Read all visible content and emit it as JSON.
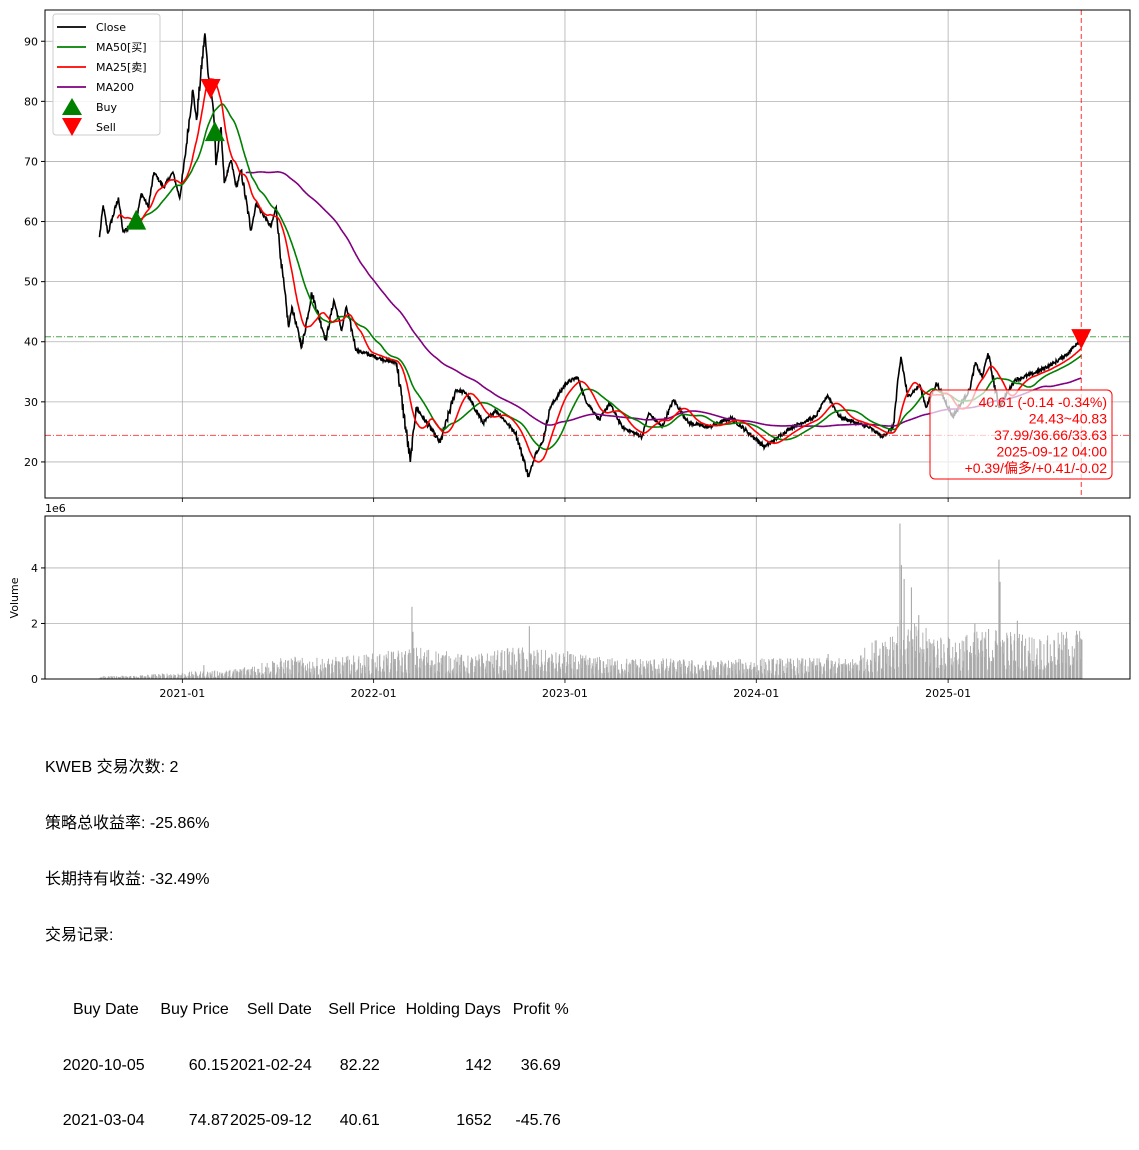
{
  "chart_data": [
    {
      "type": "line",
      "panel": "price",
      "xlim": [
        "2020-04-14",
        "2025-12-14"
      ],
      "ylim": [
        14,
        95.2
      ],
      "yticks": [
        20,
        30,
        40,
        50,
        60,
        70,
        80,
        90
      ],
      "xticks": [
        "2021-01",
        "2022-01",
        "2023-01",
        "2024-01",
        "2025-01"
      ],
      "grid": true,
      "legend_placement": "upper-left",
      "legend": [
        "Close",
        "MA50[买]",
        "MA25[卖]",
        "MA200",
        "Buy",
        "Sell"
      ],
      "colors": {
        "close": "#000000",
        "ma50": "#008000",
        "ma25": "#ff0000",
        "ma200": "#800080",
        "buy": "#008000",
        "sell": "#ff0000"
      },
      "close": [
        [
          "2020-07-27",
          57.4
        ],
        [
          "2020-08-03",
          62.7
        ],
        [
          "2020-08-12",
          58.0
        ],
        [
          "2020-09-01",
          64.0
        ],
        [
          "2020-09-10",
          58.2
        ],
        [
          "2020-10-05",
          60.15
        ],
        [
          "2020-10-15",
          64.7
        ],
        [
          "2020-10-28",
          62.4
        ],
        [
          "2020-11-08",
          68.2
        ],
        [
          "2020-11-26",
          65.7
        ],
        [
          "2020-12-14",
          68.2
        ],
        [
          "2020-12-27",
          63.9
        ],
        [
          "2021-01-06",
          70.7
        ],
        [
          "2021-01-21",
          81.9
        ],
        [
          "2021-01-28",
          76.9
        ],
        [
          "2021-02-13",
          91.3
        ],
        [
          "2021-02-20",
          84.0
        ],
        [
          "2021-02-24",
          82.22
        ],
        [
          "2021-02-28",
          79.7
        ],
        [
          "2021-03-04",
          74.87
        ],
        [
          "2021-03-06",
          69.4
        ],
        [
          "2021-03-16",
          75.7
        ],
        [
          "2021-03-22",
          66.4
        ],
        [
          "2021-04-04",
          70.2
        ],
        [
          "2021-04-14",
          65.7
        ],
        [
          "2021-04-23",
          68.5
        ],
        [
          "2021-05-12",
          58.6
        ],
        [
          "2021-05-22",
          63.0
        ],
        [
          "2021-06-19",
          59.1
        ],
        [
          "2021-06-29",
          62.4
        ],
        [
          "2021-07-08",
          53.6
        ],
        [
          "2021-07-23",
          42.4
        ],
        [
          "2021-07-29",
          45.8
        ],
        [
          "2021-08-17",
          39.1
        ],
        [
          "2021-09-05",
          48.1
        ],
        [
          "2021-10-02",
          40.3
        ],
        [
          "2021-10-17",
          46.9
        ],
        [
          "2021-11-01",
          41.9
        ],
        [
          "2021-11-10",
          45.8
        ],
        [
          "2021-11-29",
          38.6
        ],
        [
          "2022-01-20",
          37.0
        ],
        [
          "2022-02-14",
          36.5
        ],
        [
          "2022-03-12",
          20.0
        ],
        [
          "2022-03-23",
          29.1
        ],
        [
          "2022-05-08",
          23.2
        ],
        [
          "2022-06-07",
          32.0
        ],
        [
          "2022-06-26",
          31.5
        ],
        [
          "2022-07-29",
          26.5
        ],
        [
          "2022-08-22",
          28.6
        ],
        [
          "2022-09-29",
          24.8
        ],
        [
          "2022-10-24",
          17.5
        ],
        [
          "2022-11-06",
          21.5
        ],
        [
          "2022-11-19",
          23.2
        ],
        [
          "2022-12-04",
          29.1
        ],
        [
          "2023-01-03",
          33.1
        ],
        [
          "2023-01-25",
          34.1
        ],
        [
          "2023-02-09",
          30.3
        ],
        [
          "2023-03-08",
          27.0
        ],
        [
          "2023-03-27",
          29.8
        ],
        [
          "2023-04-20",
          25.8
        ],
        [
          "2023-05-28",
          24.2
        ],
        [
          "2023-06-10",
          28.1
        ],
        [
          "2023-07-05",
          25.8
        ],
        [
          "2023-07-27",
          30.3
        ],
        [
          "2023-08-25",
          26.5
        ],
        [
          "2023-10-02",
          25.8
        ],
        [
          "2023-11-15",
          27.3
        ],
        [
          "2024-01-17",
          22.5
        ],
        [
          "2024-03-09",
          25.8
        ],
        [
          "2024-04-23",
          27.5
        ],
        [
          "2024-05-16",
          31.1
        ],
        [
          "2024-06-08",
          27.5
        ],
        [
          "2024-08-04",
          25.7
        ],
        [
          "2024-08-29",
          24.2
        ],
        [
          "2024-09-18",
          25.8
        ],
        [
          "2024-10-03",
          37.5
        ],
        [
          "2024-10-16",
          30.8
        ],
        [
          "2024-11-08",
          32.8
        ],
        [
          "2024-11-20",
          29.1
        ],
        [
          "2024-12-10",
          33.1
        ],
        [
          "2025-01-10",
          27.5
        ],
        [
          "2025-02-11",
          32.0
        ],
        [
          "2025-02-22",
          36.5
        ],
        [
          "2025-03-07",
          34.1
        ],
        [
          "2025-03-18",
          38.1
        ],
        [
          "2025-04-08",
          29.1
        ],
        [
          "2025-05-08",
          33.6
        ],
        [
          "2025-06-15",
          34.8
        ],
        [
          "2025-07-23",
          36.5
        ],
        [
          "2025-08-18",
          38.1
        ],
        [
          "2025-09-12",
          40.61
        ]
      ],
      "ma_windows": {
        "ma50": 50,
        "ma25": 25,
        "ma200": 200
      },
      "buys": [
        [
          "2020-10-05",
          60.15
        ],
        [
          "2021-03-04",
          74.87
        ]
      ],
      "sells": [
        [
          "2021-02-24",
          82.22
        ],
        [
          "2025-09-12",
          40.61
        ]
      ],
      "hlines": [
        {
          "value": 40.83,
          "color": "#008000"
        },
        {
          "value": 24.43,
          "color": "#ff0000"
        }
      ],
      "vline": "2025-09-12",
      "annotation": {
        "lines": [
          "40.61 (-0.14 -0.34%)",
          "24.43~40.83",
          "37.99/36.66/33.63",
          "2025-09-12 04:00",
          "+0.39/偏多/+0.41/-0.02"
        ],
        "color": "#ff0000"
      }
    },
    {
      "type": "bar",
      "panel": "volume",
      "ylabel": "Volume",
      "offset_text": "1e6",
      "ylim": [
        0,
        5.87
      ],
      "yticks": [
        0,
        2,
        4
      ],
      "color": "#aaaaaa",
      "monthly_typical_volume_millions": [
        [
          "2020-07",
          0.05
        ],
        [
          "2020-10",
          0.08
        ],
        [
          "2021-01",
          0.15
        ],
        [
          "2021-04",
          0.2
        ],
        [
          "2021-07",
          0.45
        ],
        [
          "2021-10",
          0.45
        ],
        [
          "2022-01",
          0.55
        ],
        [
          "2022-04",
          0.7
        ],
        [
          "2022-07",
          0.5
        ],
        [
          "2022-10",
          0.7
        ],
        [
          "2023-01",
          0.55
        ],
        [
          "2023-04",
          0.45
        ],
        [
          "2023-07",
          0.45
        ],
        [
          "2023-10",
          0.4
        ],
        [
          "2024-01",
          0.45
        ],
        [
          "2024-04",
          0.45
        ],
        [
          "2024-07",
          0.45
        ],
        [
          "2024-10",
          1.3
        ],
        [
          "2025-01",
          0.9
        ],
        [
          "2025-04",
          1.1
        ],
        [
          "2025-07",
          0.9
        ],
        [
          "2025-09",
          1.1
        ]
      ],
      "spikes": [
        [
          "2021-02-10",
          0.5
        ],
        [
          "2021-08-03",
          0.8
        ],
        [
          "2022-03-14",
          2.6
        ],
        [
          "2022-03-16",
          1.7
        ],
        [
          "2022-10-24",
          1.9
        ],
        [
          "2023-01-05",
          1.0
        ],
        [
          "2024-05-16",
          0.9
        ],
        [
          "2024-09-30",
          5.6
        ],
        [
          "2024-10-03",
          4.1
        ],
        [
          "2024-10-08",
          3.6
        ],
        [
          "2024-10-22",
          3.3
        ],
        [
          "2024-11-05",
          2.3
        ],
        [
          "2025-02-20",
          2.0
        ],
        [
          "2025-03-18",
          1.8
        ],
        [
          "2025-04-07",
          4.3
        ],
        [
          "2025-04-09",
          3.5
        ],
        [
          "2025-05-12",
          2.1
        ],
        [
          "2025-09-12",
          1.4
        ]
      ]
    }
  ],
  "summary": {
    "line1": "KWEB 交易次数: 2",
    "line2": "策略总收益率: -25.86%",
    "line3": "长期持有收益: -32.49%",
    "line4": "交易记录:",
    "table_headers": [
      "Buy Date",
      "Buy Price",
      "Sell Date",
      "Sell Price",
      "Holding Days",
      "Profit %"
    ],
    "table_rows": [
      [
        "2020-10-05",
        "60.15",
        "2021-02-24",
        "82.22",
        "142",
        "36.69"
      ],
      [
        "2021-03-04",
        "74.87",
        "2025-09-12",
        "40.61",
        "1652",
        "-45.76"
      ]
    ]
  }
}
